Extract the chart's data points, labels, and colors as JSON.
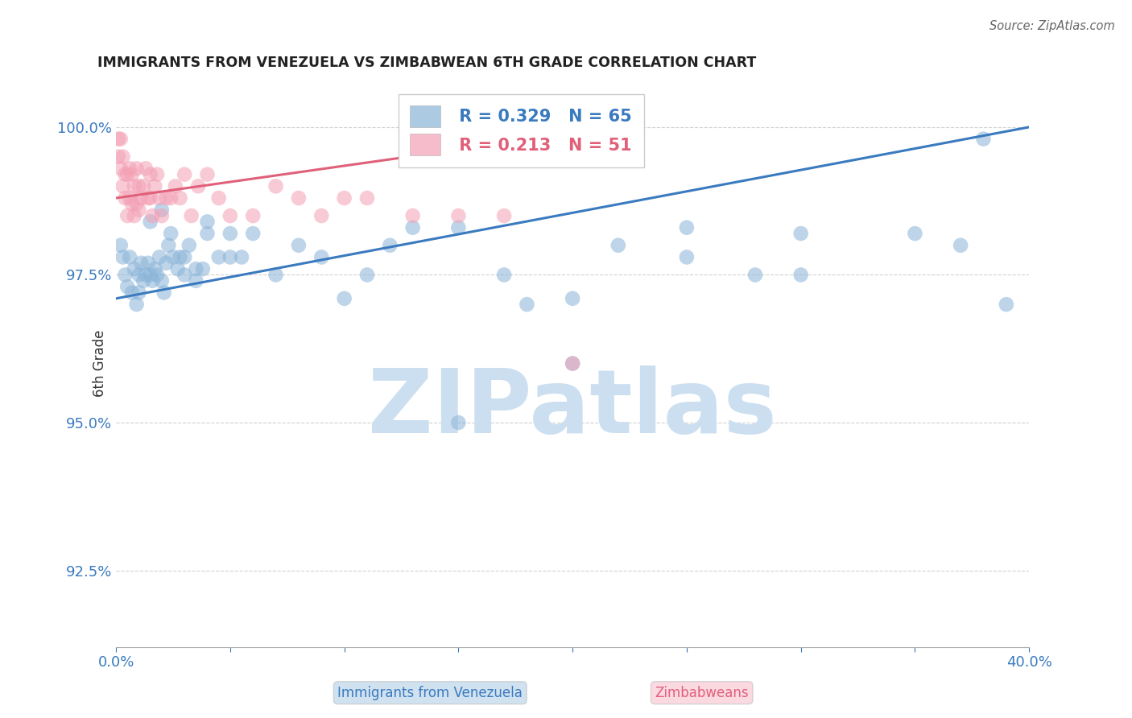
{
  "title": "IMMIGRANTS FROM VENEZUELA VS ZIMBABWEAN 6TH GRADE CORRELATION CHART",
  "source": "Source: ZipAtlas.com",
  "ylabel": "6th Grade",
  "ytick_labels": [
    "92.5%",
    "95.0%",
    "97.5%",
    "100.0%"
  ],
  "ytick_values": [
    0.925,
    0.95,
    0.975,
    1.0
  ],
  "xlim": [
    0.0,
    0.4
  ],
  "ylim": [
    0.912,
    1.008
  ],
  "legend_r1": "R = 0.329",
  "legend_n1": "N = 65",
  "legend_r2": "R = 0.213",
  "legend_n2": "N = 51",
  "blue_color": "#8ab4d8",
  "pink_color": "#f4a0b5",
  "blue_line_color": "#3a7abf",
  "pink_line_color": "#e0607a",
  "background_color": "#ffffff",
  "watermark": "ZIPatlas",
  "watermark_color": "#ccdff0",
  "blue_x": [
    0.002,
    0.003,
    0.004,
    0.005,
    0.006,
    0.007,
    0.008,
    0.009,
    0.01,
    0.01,
    0.011,
    0.012,
    0.013,
    0.014,
    0.015,
    0.016,
    0.017,
    0.018,
    0.019,
    0.02,
    0.021,
    0.022,
    0.023,
    0.024,
    0.025,
    0.027,
    0.028,
    0.03,
    0.032,
    0.035,
    0.038,
    0.04,
    0.045,
    0.05,
    0.055,
    0.06,
    0.07,
    0.08,
    0.09,
    0.1,
    0.11,
    0.12,
    0.13,
    0.15,
    0.17,
    0.2,
    0.22,
    0.25,
    0.28,
    0.3,
    0.15,
    0.18,
    0.2,
    0.25,
    0.3,
    0.35,
    0.37,
    0.38,
    0.39,
    0.05,
    0.015,
    0.02,
    0.03,
    0.035,
    0.04
  ],
  "blue_y": [
    0.98,
    0.978,
    0.975,
    0.973,
    0.978,
    0.972,
    0.976,
    0.97,
    0.975,
    0.972,
    0.977,
    0.974,
    0.975,
    0.977,
    0.975,
    0.974,
    0.976,
    0.975,
    0.978,
    0.974,
    0.972,
    0.977,
    0.98,
    0.982,
    0.978,
    0.976,
    0.978,
    0.975,
    0.98,
    0.974,
    0.976,
    0.982,
    0.978,
    0.982,
    0.978,
    0.982,
    0.975,
    0.98,
    0.978,
    0.971,
    0.975,
    0.98,
    0.983,
    0.983,
    0.975,
    0.971,
    0.98,
    0.983,
    0.975,
    0.982,
    0.95,
    0.97,
    0.96,
    0.978,
    0.975,
    0.982,
    0.98,
    0.998,
    0.97,
    0.978,
    0.984,
    0.986,
    0.978,
    0.976,
    0.984
  ],
  "pink_x": [
    0.001,
    0.001,
    0.002,
    0.002,
    0.003,
    0.003,
    0.004,
    0.004,
    0.005,
    0.005,
    0.006,
    0.006,
    0.007,
    0.007,
    0.008,
    0.008,
    0.009,
    0.009,
    0.01,
    0.01,
    0.011,
    0.012,
    0.013,
    0.014,
    0.015,
    0.016,
    0.017,
    0.018,
    0.019,
    0.02,
    0.022,
    0.024,
    0.026,
    0.028,
    0.03,
    0.033,
    0.036,
    0.04,
    0.045,
    0.05,
    0.06,
    0.07,
    0.08,
    0.09,
    0.1,
    0.11,
    0.13,
    0.15,
    0.17,
    0.2,
    0.015
  ],
  "pink_y": [
    0.998,
    0.995,
    0.993,
    0.998,
    0.99,
    0.995,
    0.988,
    0.992,
    0.985,
    0.992,
    0.988,
    0.993,
    0.987,
    0.992,
    0.985,
    0.99,
    0.987,
    0.993,
    0.986,
    0.99,
    0.988,
    0.99,
    0.993,
    0.988,
    0.992,
    0.985,
    0.99,
    0.992,
    0.988,
    0.985,
    0.988,
    0.988,
    0.99,
    0.988,
    0.992,
    0.985,
    0.99,
    0.992,
    0.988,
    0.985,
    0.985,
    0.99,
    0.988,
    0.985,
    0.988,
    0.988,
    0.985,
    0.985,
    0.985,
    0.96,
    0.988
  ],
  "blue_trend_x": [
    0.0,
    0.4
  ],
  "blue_trend_y": [
    0.971,
    1.0
  ],
  "pink_trend_x": [
    0.0,
    0.22
  ],
  "pink_trend_y": [
    0.988,
    1.0
  ]
}
